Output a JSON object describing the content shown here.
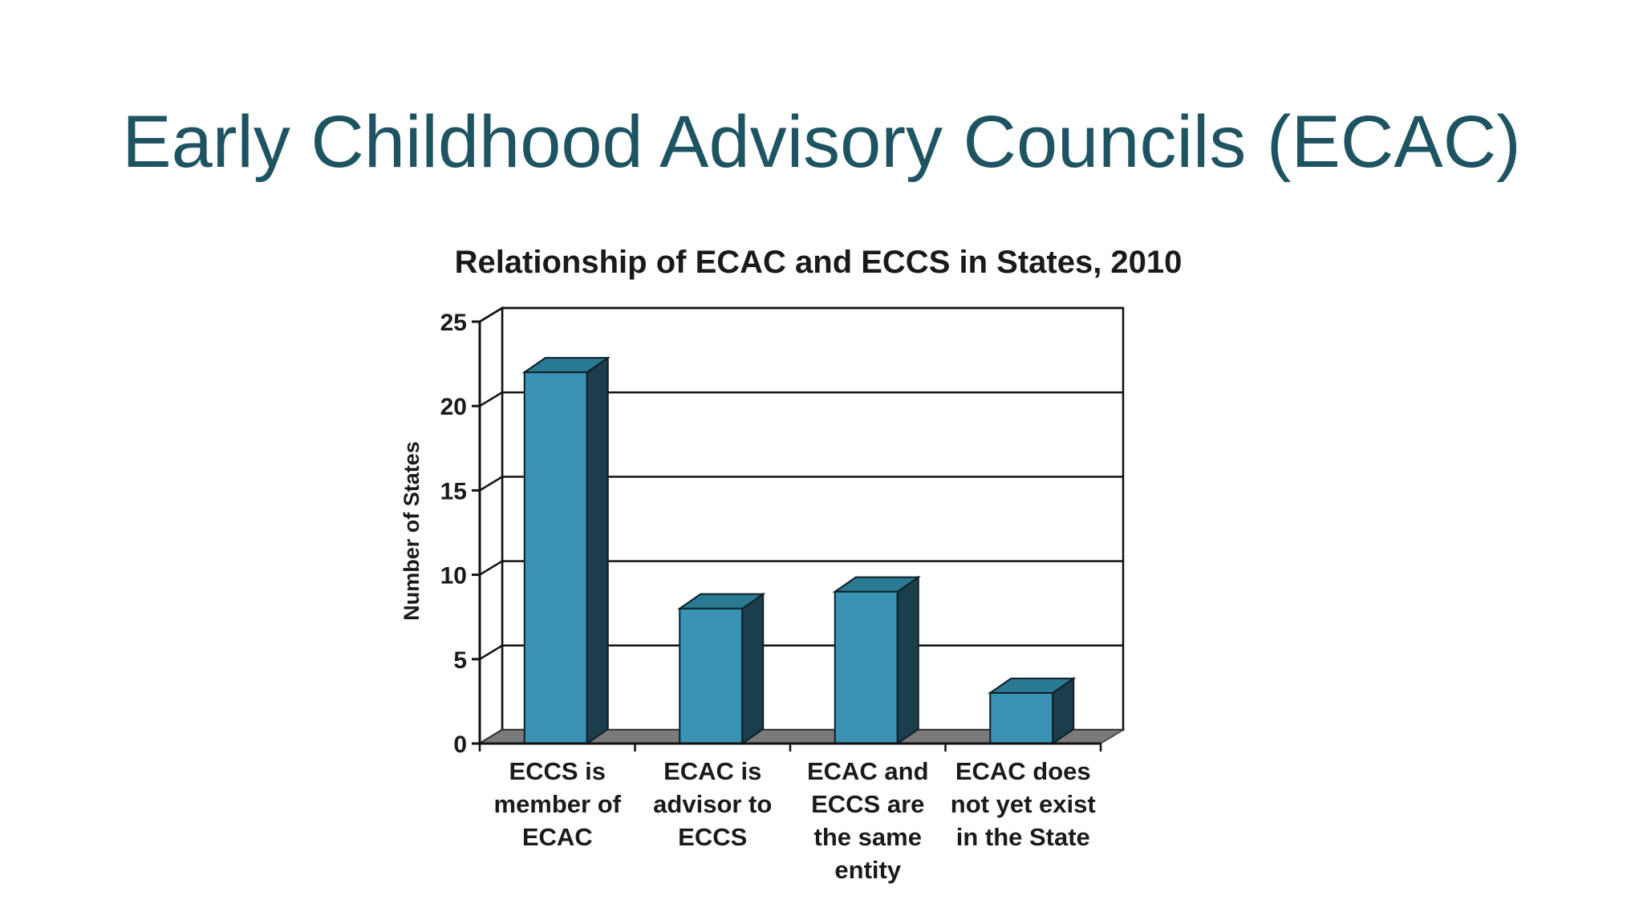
{
  "slide": {
    "title": "Early Childhood Advisory Councils (ECAC)"
  },
  "chart_data": {
    "type": "bar",
    "title": "Relationship of ECAC and ECCS in States, 2010",
    "xlabel": "",
    "ylabel": "Number of States",
    "ylim": [
      0,
      25
    ],
    "yticks": [
      "0",
      "5",
      "10",
      "15",
      "20",
      "25"
    ],
    "grid": true,
    "style": "3d",
    "categories": [
      [
        "ECCS is",
        "member of",
        "ECAC"
      ],
      [
        "ECAC is",
        "advisor to",
        "ECCS"
      ],
      [
        "ECAC and",
        "ECCS are",
        "the same",
        "entity"
      ],
      [
        "ECAC does",
        "not yet exist",
        "in the State"
      ]
    ],
    "values": [
      22,
      8,
      9,
      3
    ],
    "colors": {
      "bar_front": "#3a93b4",
      "bar_top": "#2b7a94",
      "bar_side": "#1b3e4c",
      "floor": "#7a7a7a",
      "grid": "#111111"
    }
  }
}
